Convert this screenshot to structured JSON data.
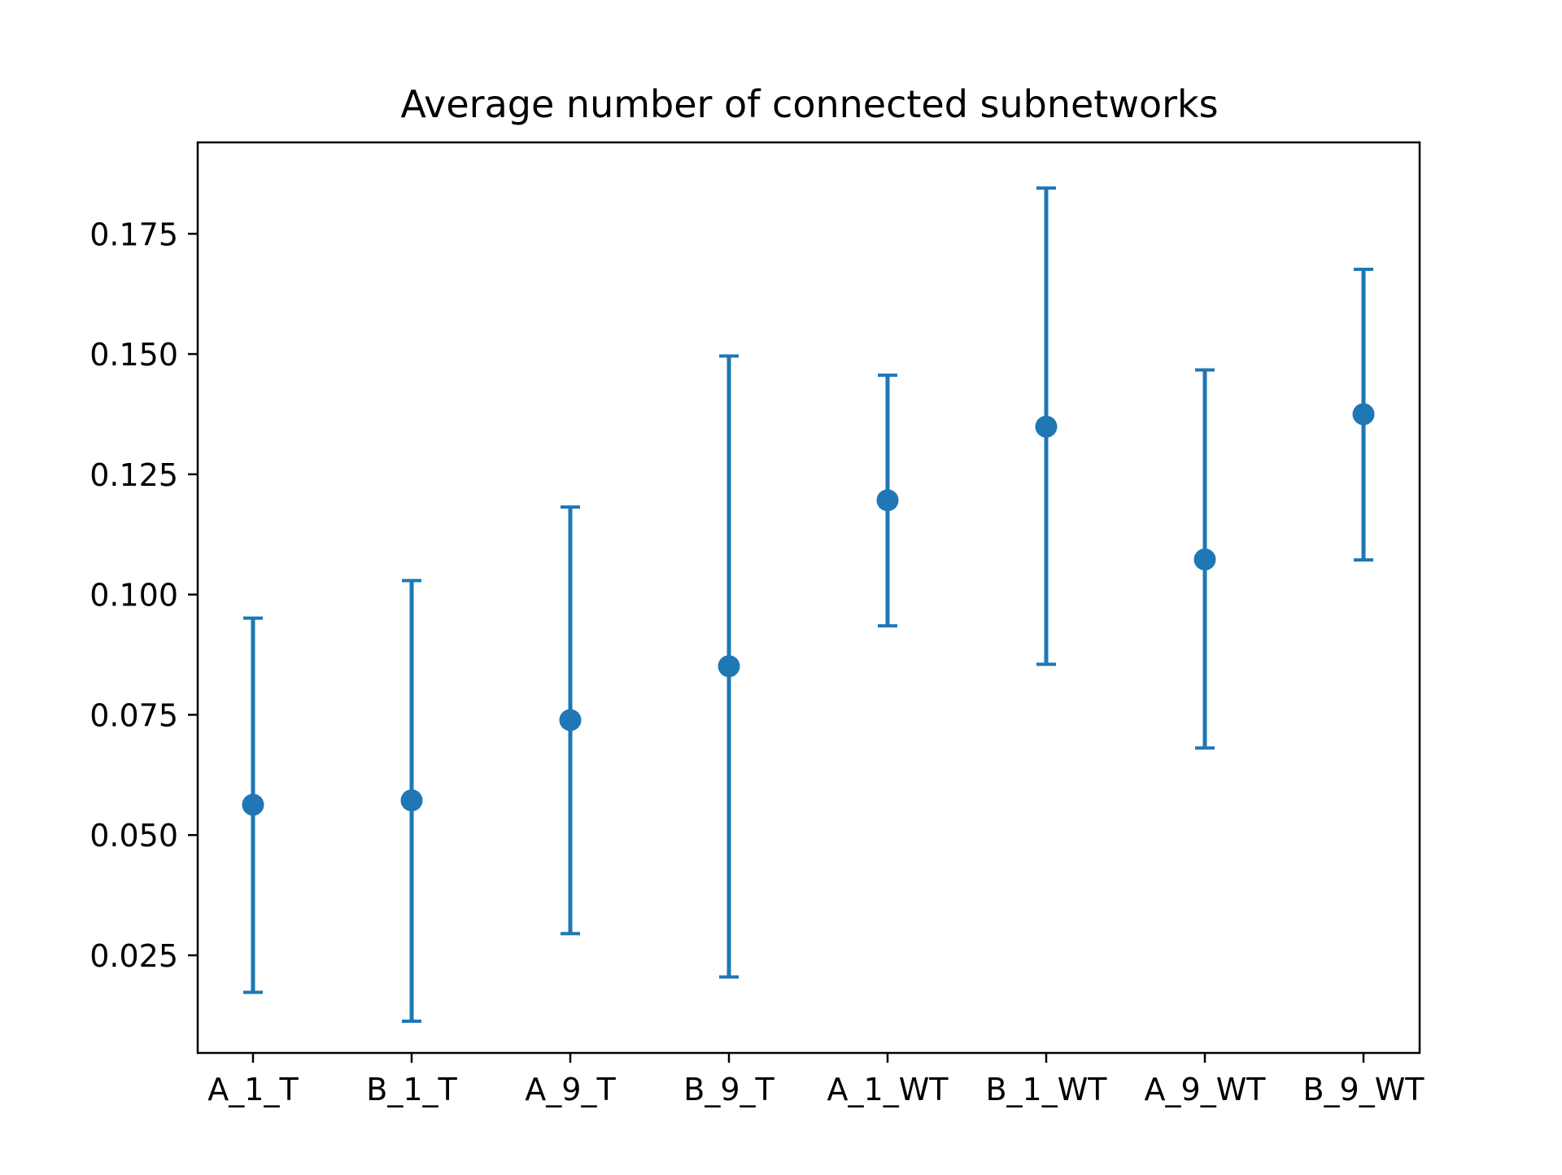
{
  "chart_data": {
    "type": "scatter",
    "title": "Average number of connected subnetworks",
    "xlabel": "",
    "ylabel": "",
    "categories": [
      "A_1_T",
      "B_1_T",
      "A_9_T",
      "B_9_T",
      "A_1_WT",
      "B_1_WT",
      "A_9_WT",
      "B_9_WT"
    ],
    "series": [
      {
        "values": [
          0.0563,
          0.0572,
          0.0739,
          0.0851,
          0.1196,
          0.1349,
          0.1073,
          0.1375
        ],
        "err_low": [
          0.0173,
          0.0113,
          0.0295,
          0.0205,
          0.0935,
          0.0855,
          0.0681,
          0.1072
        ],
        "err_high": [
          0.0951,
          0.1029,
          0.1182,
          0.1496,
          0.1456,
          0.1845,
          0.1467,
          0.1676
        ]
      }
    ],
    "ylim": [
      0.0047,
      0.194
    ],
    "yticks": [
      0.025,
      0.05,
      0.075,
      0.1,
      0.125,
      0.15,
      0.175
    ],
    "ytick_labels": [
      "0.025",
      "0.050",
      "0.075",
      "0.100",
      "0.125",
      "0.150",
      "0.175"
    ],
    "grid": false,
    "legend": "none",
    "colors": {
      "series": "#1f77b4",
      "axes": "#000000",
      "background": "#ffffff"
    }
  }
}
